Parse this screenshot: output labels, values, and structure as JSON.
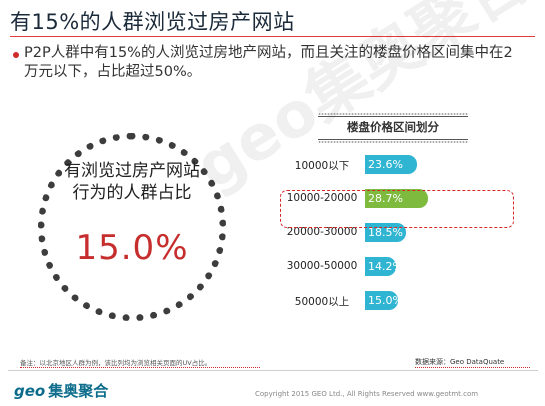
{
  "title": "有15%的人群浏览过房产网站",
  "bullet": "P2P人群中有15%的人浏览过房地产网站，而且关注的楼盘价格区间集中在2万元以下，占比超过50%。",
  "circle": {
    "line1": "有浏览过房产网站",
    "line2": "行为的人群占比",
    "value": "15.0%"
  },
  "watermark": "geo集奥聚合",
  "footer": {
    "note": "备注：以北京地区人群为例，该比列均为浏览相关页面的UV占比。",
    "source": "数据来源：Geo DataQuate",
    "logo_geo": "geo",
    "logo_text": "集奥聚合",
    "copyright": "Copyright 2015 GEO Ltd., All Rights Reserved    www.geotmt.com"
  },
  "colors": {
    "bar": "#2fb4d1",
    "highlight_bar": "#7dba3e",
    "accent_red": "#d62828"
  },
  "chart_data": {
    "type": "bar",
    "orientation": "horizontal",
    "title": "楼盘价格区间划分",
    "categories": [
      "10000以下",
      "10000-20000",
      "20000-30000",
      "30000-50000",
      "50000以上"
    ],
    "values": [
      23.6,
      28.7,
      18.5,
      14.2,
      15.0
    ],
    "value_labels": [
      "23.6%",
      "28.7%",
      "18.5%",
      "14.2%",
      "15.0%"
    ],
    "highlight_index": 1,
    "xlim": [
      0,
      30
    ]
  }
}
